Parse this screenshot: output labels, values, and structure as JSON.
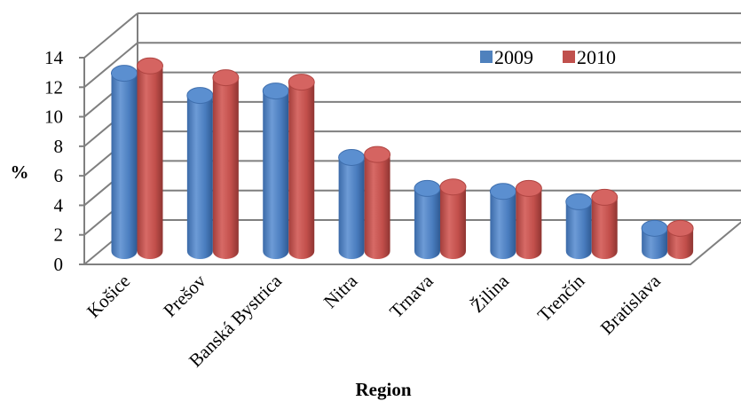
{
  "chart_data": {
    "type": "bar",
    "title": "",
    "xlabel": "Region",
    "ylabel": "%",
    "ylim": [
      0,
      14
    ],
    "yticks": [
      0,
      2,
      4,
      6,
      8,
      10,
      12,
      14
    ],
    "grid": true,
    "legend_position": "top-right",
    "categories": [
      "Košice",
      "Prešov",
      "Banská Bystrica",
      "Nitra",
      "Trnava",
      "Žilina",
      "Trenčín",
      "Bratislava"
    ],
    "series": [
      {
        "name": "2009",
        "color": "#4F81BD",
        "values": [
          12.1,
          10.6,
          10.9,
          6.4,
          4.3,
          4.1,
          3.4,
          1.6
        ]
      },
      {
        "name": "2010",
        "color": "#C0504D",
        "values": [
          12.6,
          11.8,
          11.5,
          6.6,
          4.4,
          4.3,
          3.7,
          1.6
        ]
      }
    ]
  }
}
